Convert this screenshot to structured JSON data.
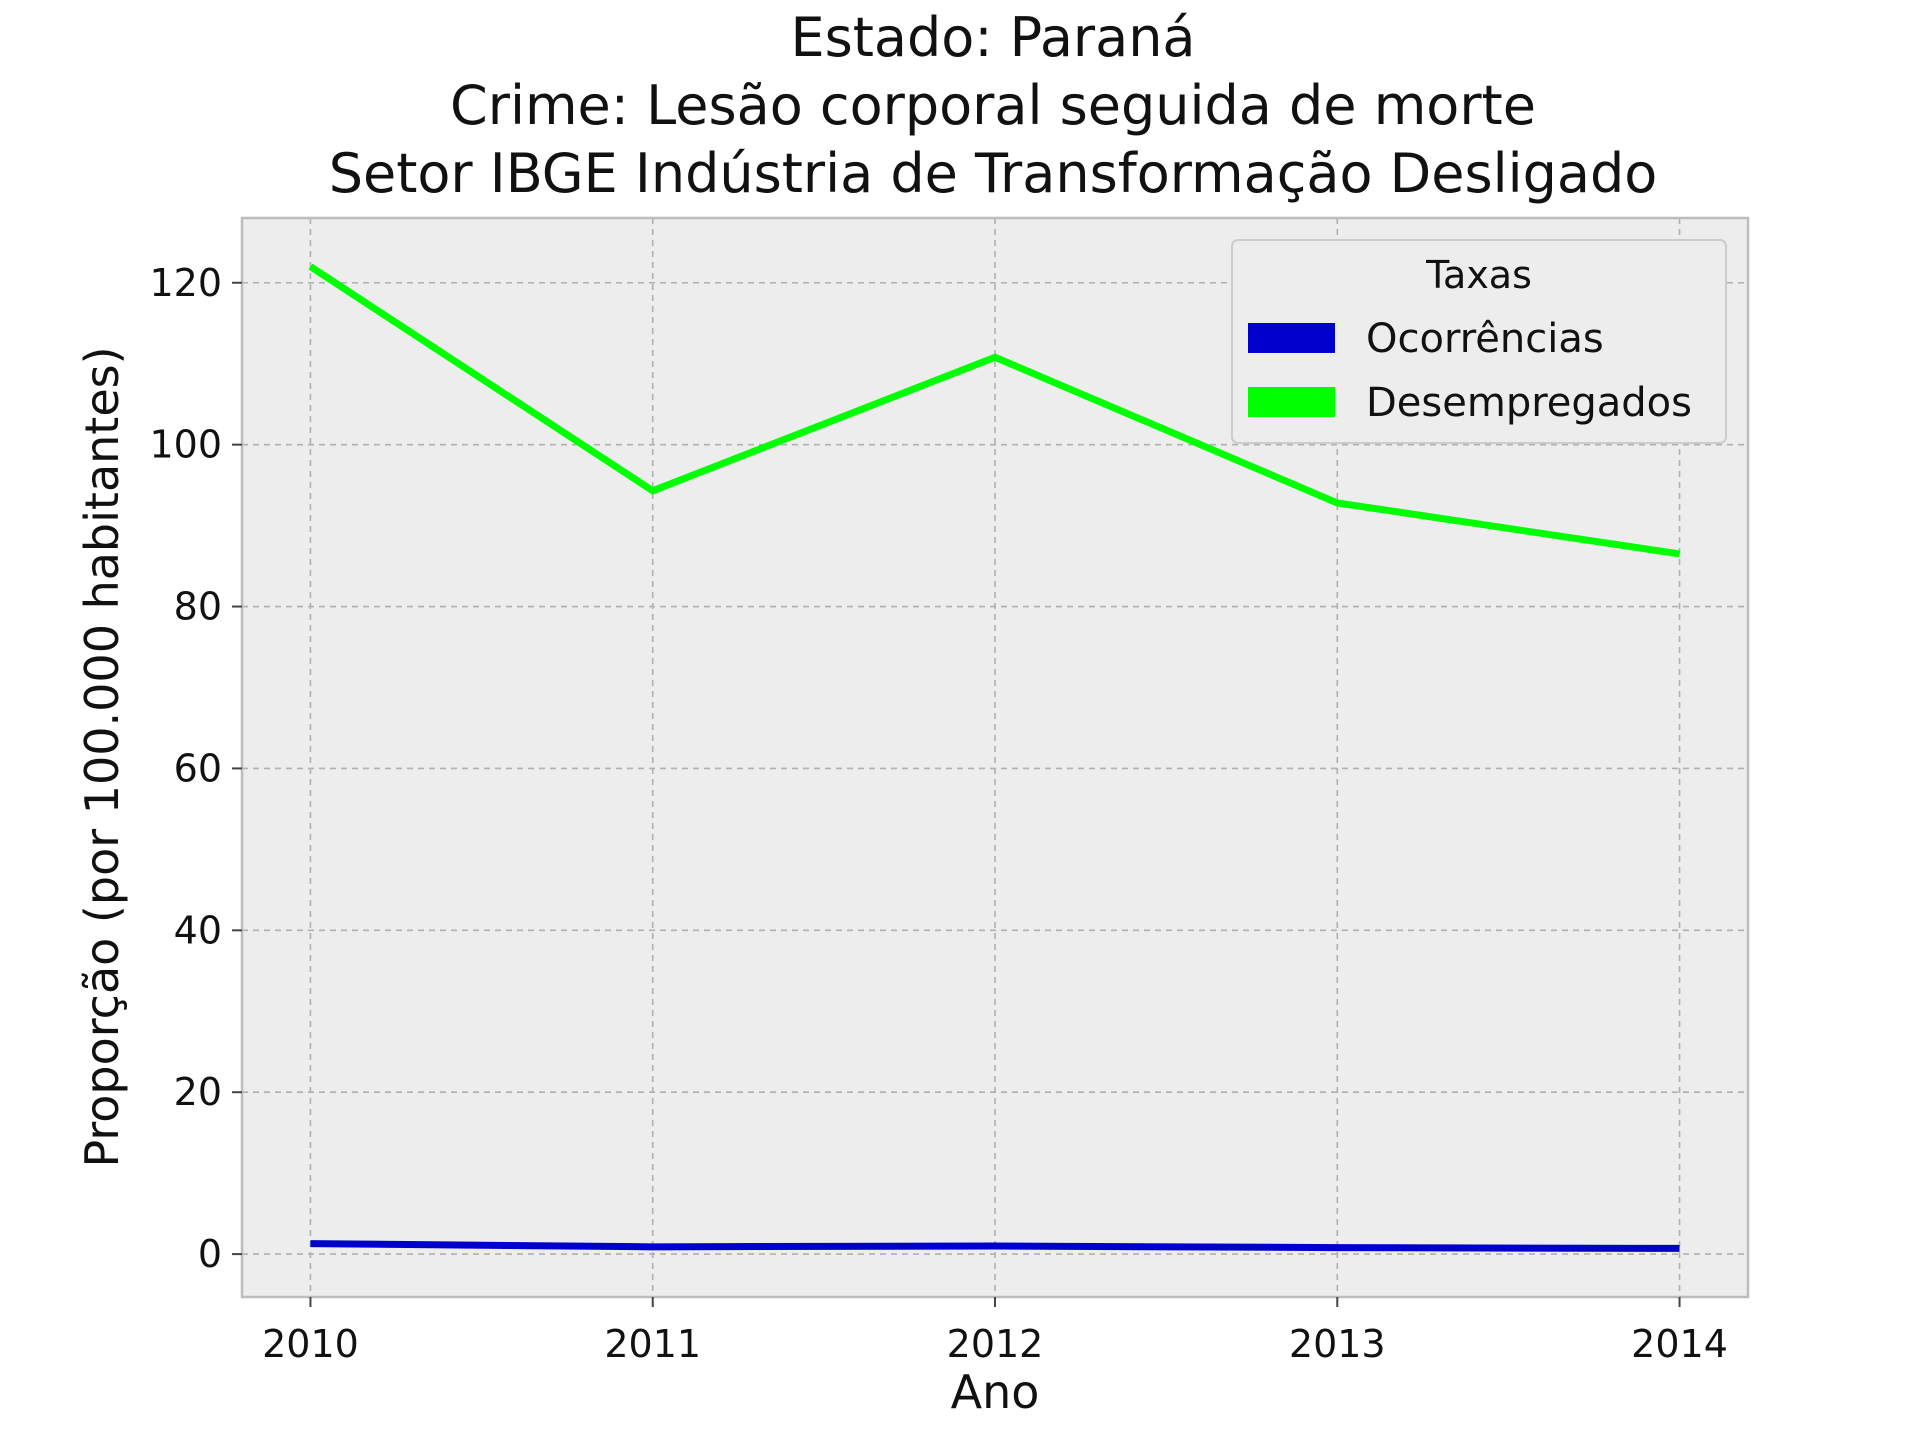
{
  "chart_data": {
    "type": "line",
    "title_lines": [
      "Estado: Paraná",
      "Crime: Lesão corporal seguida de morte",
      "Setor IBGE  Indústria de Transformação   Desligado"
    ],
    "xlabel": "Ano",
    "ylabel": "Proporção (por 100.000 habitantes)",
    "x": [
      2010,
      2011,
      2012,
      2013,
      2014
    ],
    "x_tick_labels": [
      "2010",
      "2011",
      "2012",
      "2013",
      "2014"
    ],
    "y_ticks": [
      0,
      20,
      40,
      60,
      80,
      100,
      120
    ],
    "y_tick_labels": [
      "0",
      "20",
      "40",
      "60",
      "80",
      "100",
      "120"
    ],
    "xlim": [
      2009.8,
      2014.2
    ],
    "ylim": [
      -5.3,
      128
    ],
    "grid": true,
    "legend": {
      "title": "Taxas",
      "placement": "top-right"
    },
    "series": [
      {
        "name": "Ocorrências",
        "color": "#0000cc",
        "values": [
          1.3,
          0.9,
          1.0,
          0.8,
          0.7
        ]
      },
      {
        "name": "Desempregados",
        "color": "#00ff00",
        "values": [
          122.0,
          94.3,
          110.8,
          92.8,
          86.5
        ]
      }
    ],
    "colors": {
      "plot_background": "#ededed",
      "axes_frame": "#bcbcbc"
    }
  }
}
